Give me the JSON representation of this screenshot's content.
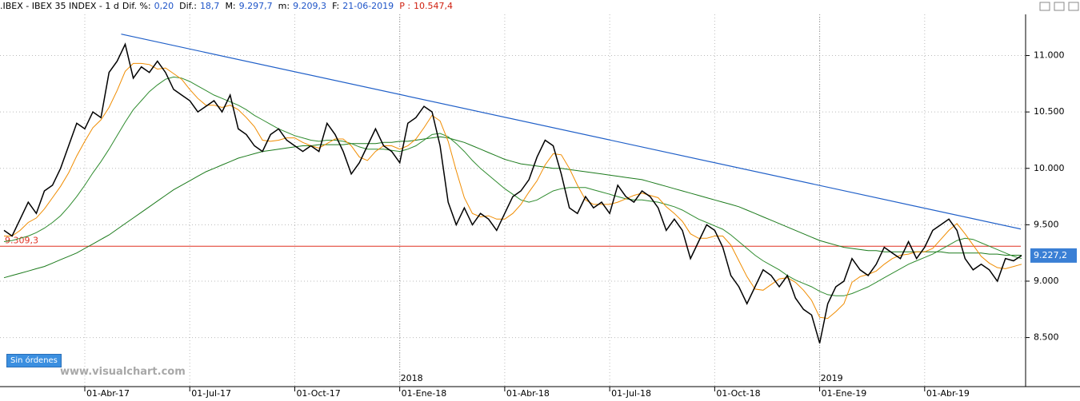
{
  "header": {
    "symbol": ".IBEX - IBEX 35 INDEX - 1 d",
    "fields": [
      {
        "label": "Dif. %:",
        "value": "0,20"
      },
      {
        "label": "Dif.:",
        "value": "18,7"
      },
      {
        "label": "M:",
        "value": "9.297,7"
      },
      {
        "label": "m:",
        "value": "9.209,3"
      },
      {
        "label": "F:",
        "value": "21-06-2019"
      },
      {
        "label": "P :",
        "value": "10.547,4"
      }
    ]
  },
  "ui": {
    "button": "Sin órdenes",
    "watermark": "www.visualchart.com"
  },
  "chart_data": {
    "type": "line",
    "grid": true,
    "categories": [
      null,
      null,
      null,
      null,
      null,
      null,
      null,
      null,
      null,
      null,
      "01-Abr-17",
      null,
      null,
      null,
      null,
      null,
      null,
      null,
      null,
      null,
      null,
      null,
      null,
      "01-Jul-17",
      null,
      null,
      null,
      null,
      null,
      null,
      null,
      null,
      null,
      null,
      null,
      null,
      "01-Oct-17",
      null,
      null,
      null,
      null,
      null,
      null,
      null,
      null,
      null,
      null,
      null,
      null,
      "01-Ene-18",
      null,
      null,
      null,
      null,
      null,
      null,
      null,
      null,
      null,
      null,
      null,
      null,
      "01-Abr-18",
      null,
      null,
      null,
      null,
      null,
      null,
      null,
      null,
      null,
      null,
      null,
      null,
      "01-Jul-18",
      null,
      null,
      null,
      null,
      null,
      null,
      null,
      null,
      null,
      null,
      null,
      null,
      "01-Oct-18",
      null,
      null,
      null,
      null,
      null,
      null,
      null,
      null,
      null,
      null,
      null,
      null,
      "01-Ene-19",
      null,
      null,
      null,
      null,
      null,
      null,
      null,
      null,
      null,
      null,
      null,
      null,
      "01-Abr-19",
      null,
      null,
      null,
      null,
      null,
      null,
      null,
      null,
      null,
      null,
      null,
      null
    ],
    "year_marks": [
      {
        "category": "01-Ene-18",
        "label": "2018"
      },
      {
        "category": "01-Ene-19",
        "label": "2019"
      }
    ],
    "ylim": [
      8065,
      11365
    ],
    "yticks": [
      {
        "value": 8500,
        "label": "8.500"
      },
      {
        "value": 9000,
        "label": "9.000"
      },
      {
        "value": 9500,
        "label": "9.500"
      },
      {
        "value": 10000,
        "label": "10.000"
      },
      {
        "value": 10500,
        "label": "10.500"
      },
      {
        "value": 11000,
        "label": "11.000"
      }
    ],
    "series": [
      {
        "color": "#1b7a1b",
        "values": [
          9030,
          9050,
          9070,
          9090,
          9110,
          9130,
          9160,
          9190,
          9220,
          9250,
          9290,
          9330,
          9370,
          9410,
          9460,
          9510,
          9560,
          9610,
          9660,
          9710,
          9760,
          9810,
          9850,
          9890,
          9930,
          9970,
          10000,
          10030,
          10060,
          10090,
          10110,
          10130,
          10150,
          10160,
          10170,
          10180,
          10190,
          10200,
          10200,
          10210,
          10210,
          10210,
          10210,
          10220,
          10220,
          10220,
          10220,
          10230,
          10230,
          10240,
          10240,
          10250,
          10260,
          10270,
          10280,
          10270,
          10250,
          10230,
          10200,
          10170,
          10140,
          10110,
          10080,
          10060,
          10040,
          10030,
          10020,
          10010,
          10000,
          10000,
          9990,
          9980,
          9970,
          9960,
          9950,
          9940,
          9930,
          9920,
          9910,
          9900,
          9880,
          9860,
          9840,
          9820,
          9800,
          9780,
          9760,
          9740,
          9720,
          9700,
          9680,
          9660,
          9630,
          9600,
          9570,
          9540,
          9510,
          9480,
          9450,
          9420,
          9390,
          9360,
          9340,
          9320,
          9300,
          9290,
          9280,
          9270,
          9270,
          9260,
          9260,
          9260,
          9260,
          9260,
          9260,
          9260,
          9260,
          9250,
          9250,
          9250,
          9250,
          9250,
          9240,
          9240,
          9230,
          9230,
          9230
        ]
      },
      {
        "color": "#2e8b2e",
        "values": [
          9350,
          9360,
          9380,
          9400,
          9430,
          9470,
          9520,
          9580,
          9660,
          9750,
          9850,
          9960,
          10060,
          10170,
          10290,
          10410,
          10520,
          10600,
          10680,
          10740,
          10790,
          10810,
          10800,
          10770,
          10730,
          10690,
          10650,
          10620,
          10590,
          10560,
          10520,
          10470,
          10430,
          10390,
          10350,
          10320,
          10290,
          10270,
          10250,
          10240,
          10250,
          10250,
          10240,
          10220,
          10190,
          10170,
          10170,
          10170,
          10160,
          10150,
          10170,
          10200,
          10250,
          10300,
          10310,
          10280,
          10220,
          10150,
          10070,
          10000,
          9940,
          9880,
          9820,
          9770,
          9720,
          9700,
          9720,
          9760,
          9800,
          9820,
          9830,
          9830,
          9830,
          9810,
          9790,
          9770,
          9750,
          9730,
          9720,
          9720,
          9710,
          9700,
          9680,
          9660,
          9630,
          9590,
          9550,
          9520,
          9490,
          9460,
          9410,
          9350,
          9290,
          9230,
          9180,
          9140,
          9100,
          9050,
          9010,
          8980,
          8950,
          8910,
          8880,
          8870,
          8870,
          8890,
          8920,
          8950,
          8990,
          9030,
          9070,
          9110,
          9150,
          9180,
          9210,
          9240,
          9280,
          9320,
          9360,
          9380,
          9370,
          9340,
          9310,
          9280,
          9250,
          9220,
          9200
        ]
      },
      {
        "color": "#f08c00",
        "values": [
          9400,
          9400,
          9450,
          9520,
          9560,
          9640,
          9740,
          9840,
          9960,
          10110,
          10240,
          10360,
          10430,
          10540,
          10690,
          10860,
          10930,
          10930,
          10920,
          10880,
          10890,
          10840,
          10790,
          10700,
          10620,
          10560,
          10560,
          10540,
          10560,
          10520,
          10450,
          10370,
          10250,
          10240,
          10250,
          10270,
          10270,
          10230,
          10200,
          10180,
          10220,
          10260,
          10260,
          10200,
          10100,
          10070,
          10150,
          10200,
          10200,
          10170,
          10200,
          10260,
          10360,
          10470,
          10420,
          10240,
          9980,
          9740,
          9600,
          9570,
          9580,
          9550,
          9550,
          9600,
          9680,
          9790,
          9890,
          10030,
          10130,
          10120,
          10000,
          9850,
          9720,
          9680,
          9680,
          9680,
          9700,
          9730,
          9760,
          9780,
          9760,
          9740,
          9660,
          9600,
          9530,
          9420,
          9380,
          9380,
          9400,
          9400,
          9320,
          9180,
          9040,
          8930,
          8920,
          8970,
          9020,
          9030,
          8990,
          8920,
          8830,
          8680,
          8670,
          8730,
          8800,
          8990,
          9040,
          9060,
          9090,
          9150,
          9200,
          9230,
          9240,
          9260,
          9260,
          9290,
          9370,
          9450,
          9510,
          9420,
          9320,
          9220,
          9160,
          9120,
          9110,
          9130,
          9150
        ]
      },
      {
        "color": "#000000",
        "values": [
          9450,
          9400,
          9550,
          9700,
          9600,
          9800,
          9850,
          10000,
          10200,
          10400,
          10350,
          10500,
          10450,
          10850,
          10950,
          11100,
          10800,
          10900,
          10850,
          10950,
          10850,
          10700,
          10650,
          10600,
          10500,
          10550,
          10600,
          10500,
          10650,
          10350,
          10300,
          10200,
          10150,
          10300,
          10350,
          10250,
          10200,
          10150,
          10200,
          10150,
          10400,
          10300,
          10150,
          9950,
          10050,
          10200,
          10350,
          10200,
          10150,
          10050,
          10400,
          10450,
          10550,
          10500,
          10200,
          9700,
          9500,
          9650,
          9500,
          9600,
          9550,
          9450,
          9600,
          9750,
          9800,
          9900,
          10100,
          10250,
          10200,
          9950,
          9650,
          9600,
          9750,
          9650,
          9700,
          9600,
          9850,
          9750,
          9700,
          9800,
          9750,
          9650,
          9450,
          9550,
          9450,
          9200,
          9350,
          9500,
          9450,
          9300,
          9050,
          8950,
          8800,
          8950,
          9100,
          9050,
          8950,
          9050,
          8850,
          8750,
          8700,
          8450,
          8800,
          8950,
          9000,
          9200,
          9100,
          9050,
          9150,
          9300,
          9250,
          9200,
          9350,
          9200,
          9300,
          9450,
          9500,
          9550,
          9450,
          9200,
          9100,
          9150,
          9100,
          9000,
          9200,
          9180,
          9227.2
        ]
      }
    ],
    "trendline": {
      "color": "#1f5fc8",
      "values": [
        11190,
        9462
      ]
    },
    "hline": {
      "color": "#e03020",
      "value": 9309.3,
      "label": "9.309,3"
    },
    "last_price": {
      "value": 9227.2,
      "label": "9.227,2",
      "color": "#3a7fd5"
    }
  }
}
